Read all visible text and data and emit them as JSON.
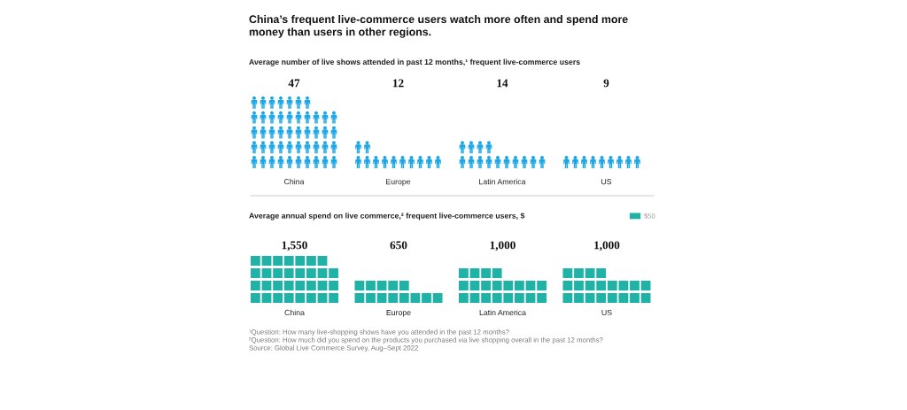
{
  "chart_data": [
    {
      "type": "other",
      "title": "China’s frequent live-commerce users watch more often and spend more\nmoney than users in other regions.",
      "subtitle": "Average number of live shows attended in past 12 months,¹ frequent live-commerce users",
      "categories": [
        "China",
        "Europe",
        "Latin America",
        "US"
      ],
      "values": [
        47,
        12,
        14,
        9
      ],
      "color": "#1ba6e6",
      "data_labels": true
    },
    {
      "type": "other",
      "subtitle": "Average annual spend on live commerce,² frequent live-commerce users, $",
      "categories": [
        "China",
        "Europe",
        "Latin America",
        "US"
      ],
      "series": [
        {
          "name": "$50",
          "color": "#1fb2a6",
          "values": [
            1550,
            650,
            1000,
            1000
          ],
          "value_labels": [
            "1,550",
            "650",
            "1,000",
            "1,000"
          ]
        }
      ],
      "legend": "top right",
      "annotations": [
        "¹Question: How many live-shopping shows have you attended in the past 12 months?",
        "²Question: How much did you spend on the products you purchased via live shopping overall in the past 12 months?",
        "Source: Global Live Commerce Survey, Aug–Sept 2022"
      ]
    }
  ]
}
